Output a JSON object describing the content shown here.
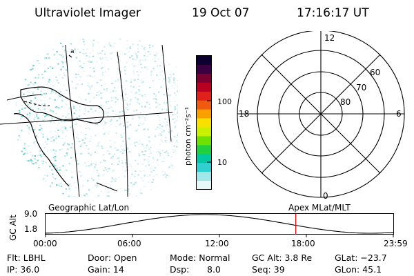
{
  "header": {
    "instrument": "Ultraviolet Imager",
    "date": "19 Oct 07",
    "time": "17:16:17 UT"
  },
  "colorbar": {
    "unit_label": "photon cm⁻²s⁻¹",
    "ticks": [
      "100",
      "10"
    ],
    "colors": [
      "#0b0030",
      "#3a0040",
      "#7a0030",
      "#b80020",
      "#e0201a",
      "#f05a10",
      "#f8a000",
      "#f8e000",
      "#c8f000",
      "#70e000",
      "#20d040",
      "#00c8a0",
      "#30d0d0",
      "#a0e8e8",
      "#e8f8f8"
    ]
  },
  "polar": {
    "mlt_labels": {
      "top": "12",
      "left": "18",
      "right": "6",
      "bottom": "0"
    },
    "lat_labels": [
      "60",
      "70",
      "80"
    ]
  },
  "map_label": "Geographic Lat/Lon",
  "polar_label": "Apex MLat/MLT",
  "orbit": {
    "ylabel": "GC Alt",
    "y_ticks": [
      "9.0",
      "1.8"
    ],
    "x_ticks": [
      "00:00",
      "06:00",
      "12:00",
      "18:00",
      "23:59"
    ],
    "marker_time_hours": 17.27,
    "marker_color": "#e00000"
  },
  "info": {
    "filter": "Flt: LBHL",
    "ip": "IP: 36.0",
    "door": "Door: Open",
    "gain": "Gain: 14",
    "mode": "Mode: Normal",
    "dsp_label": "Dsp:",
    "dsp_value": "8.0",
    "gc_alt": "GC Alt: 3.8 Re",
    "seq": "Seq: 39",
    "glat": "GLat: −23.7",
    "glon": "GLon:  45.1"
  }
}
